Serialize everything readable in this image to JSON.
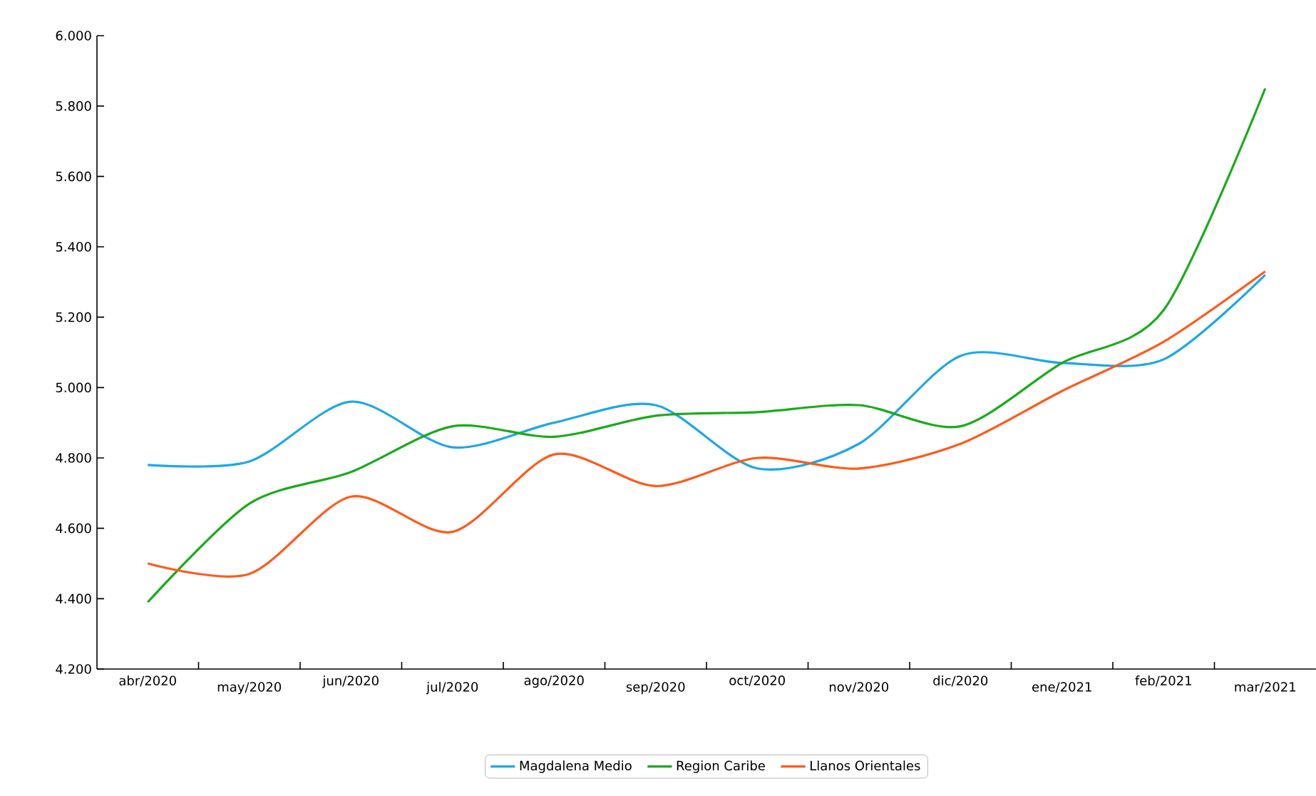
{
  "chart_data": {
    "type": "line",
    "categories": [
      "abr/2020",
      "may/2020",
      "jun/2020",
      "jul/2020",
      "ago/2020",
      "sep/2020",
      "oct/2020",
      "nov/2020",
      "dic/2020",
      "ene/2021",
      "feb/2021",
      "mar/2021"
    ],
    "series": [
      {
        "name": "Magdalena Medio",
        "color": "#1ea7e6",
        "values": [
          4780,
          4790,
          4960,
          4830,
          4900,
          4950,
          4770,
          4840,
          5090,
          5070,
          5080,
          5320
        ]
      },
      {
        "name": "Region Caribe",
        "color": "#1aab1a",
        "values": [
          4390,
          4670,
          4760,
          4890,
          4860,
          4920,
          4930,
          4950,
          4890,
          5070,
          5220,
          5850
        ]
      },
      {
        "name": "Llanos Orientales",
        "color": "#ff5a1a",
        "values": [
          4500,
          4470,
          4690,
          4590,
          4810,
          4720,
          4800,
          4770,
          4840,
          4990,
          5130,
          5330
        ]
      }
    ],
    "ylim": [
      4200,
      6000
    ],
    "yticks": [
      {
        "value": 4200,
        "label": "4.200"
      },
      {
        "value": 4400,
        "label": "4.400"
      },
      {
        "value": 4600,
        "label": "4.600"
      },
      {
        "value": 4800,
        "label": "4.800"
      },
      {
        "value": 5000,
        "label": "5.000"
      },
      {
        "value": 5200,
        "label": "5.200"
      },
      {
        "value": 5400,
        "label": "5.400"
      },
      {
        "value": 5600,
        "label": "5.600"
      },
      {
        "value": 5800,
        "label": "5.800"
      },
      {
        "value": 6000,
        "label": "6.000"
      }
    ],
    "legend": "bottom",
    "grid": false,
    "marker": "none",
    "line_style": "solid"
  }
}
